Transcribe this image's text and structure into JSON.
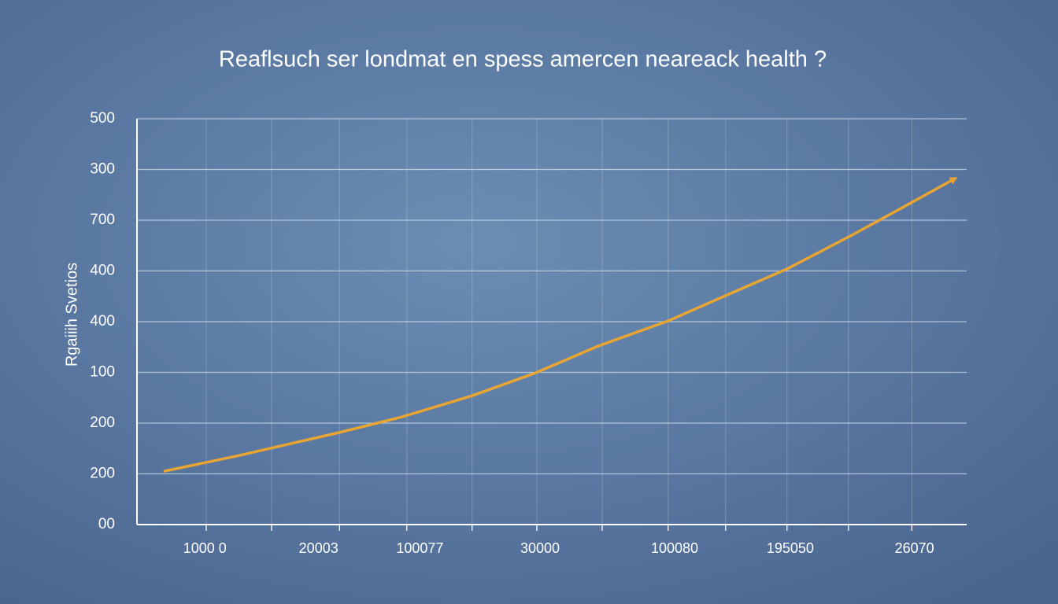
{
  "chart_data": {
    "type": "line",
    "title": "Reaflsuch ser londmat en spess amercen neareack health ?",
    "y_label": "Rgaiiih Svetios",
    "xlim": [
      0,
      12.7
    ],
    "xticks": [
      {
        "value": 1.04,
        "label": "1000 0"
      },
      {
        "value": 2.78,
        "label": "20003"
      },
      {
        "value": 4.33,
        "label": "100077"
      },
      {
        "value": 6.17,
        "label": "30000"
      },
      {
        "value": 8.23,
        "label": "100080"
      },
      {
        "value": 10.0,
        "label": "195050"
      },
      {
        "value": 11.9,
        "label": "26070"
      }
    ],
    "xgrid": [
      1.06,
      2.06,
      3.1,
      4.13,
      5.13,
      6.12,
      7.12,
      8.13,
      9.01,
      9.95,
      10.89,
      11.86
    ],
    "ylim": [
      0,
      8
    ],
    "yticks": [
      {
        "value": 0,
        "label": "00"
      },
      {
        "value": 1,
        "label": "200"
      },
      {
        "value": 2,
        "label": "200"
      },
      {
        "value": 3,
        "label": "100"
      },
      {
        "value": 4,
        "label": "400"
      },
      {
        "value": 5,
        "label": "400"
      },
      {
        "value": 6,
        "label": "700"
      },
      {
        "value": 7,
        "label": "300"
      },
      {
        "value": 8,
        "label": "500"
      }
    ],
    "grid": true,
    "series": [
      {
        "color": "#e8a531",
        "x": [
          0.41,
          1.52,
          3.08,
          4.05,
          5.13,
          6.1,
          7.06,
          8.14,
          9.11,
          9.95,
          10.92,
          11.76,
          12.52
        ],
        "values": [
          1.05,
          1.35,
          1.81,
          2.12,
          2.54,
          2.99,
          3.52,
          4.02,
          4.57,
          5.04,
          5.69,
          6.28,
          6.82
        ]
      }
    ]
  }
}
